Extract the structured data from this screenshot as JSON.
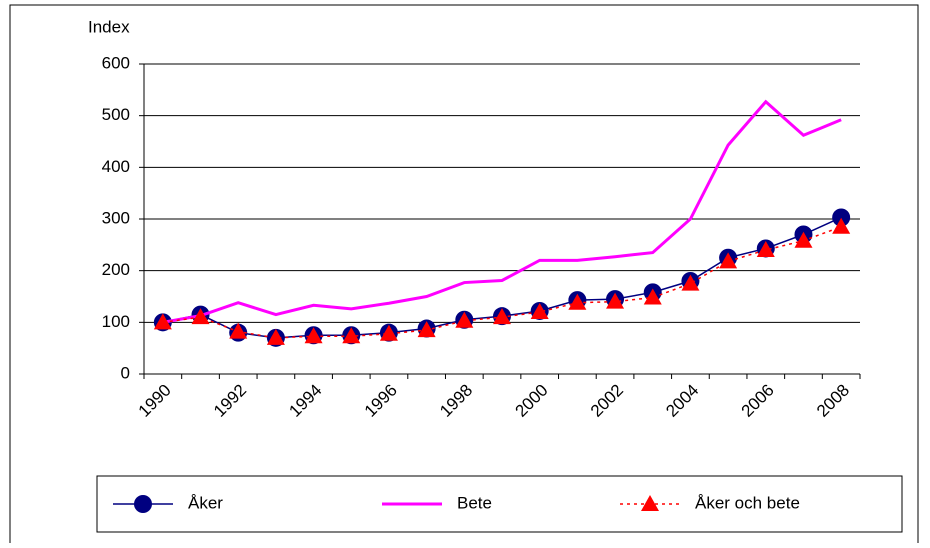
{
  "chart_data": {
    "type": "line",
    "y_label": "Index",
    "categories": [
      "1990",
      null,
      "1992",
      null,
      "1994",
      null,
      "1996",
      null,
      "1998",
      null,
      "2000",
      null,
      "2002",
      null,
      "2004",
      null,
      "2006",
      null,
      "2008"
    ],
    "series": [
      {
        "name": "Åker",
        "color": "#000080",
        "marker": "circle",
        "dash": false,
        "values": [
          100,
          115,
          80,
          70,
          75,
          75,
          80,
          88,
          105,
          112,
          122,
          143,
          145,
          158,
          180,
          225,
          243,
          270,
          303
        ]
      },
      {
        "name": "Bete",
        "color": "#ff00ff",
        "marker": "none",
        "dash": false,
        "values": [
          100,
          113,
          138,
          115,
          133,
          126,
          137,
          150,
          177,
          181,
          220,
          220,
          227,
          235,
          300,
          443,
          527,
          462,
          492
        ]
      },
      {
        "name": "Åker och bete",
        "color": "#ff0000",
        "marker": "triangle",
        "dash": true,
        "values": [
          100,
          110,
          82,
          70,
          73,
          73,
          78,
          85,
          103,
          110,
          120,
          138,
          140,
          148,
          175,
          218,
          240,
          258,
          285
        ]
      }
    ],
    "ylim": [
      0,
      600
    ],
    "yticks": [
      0,
      100,
      200,
      300,
      400,
      500,
      600
    ],
    "grid": true,
    "legend": "bottom"
  }
}
